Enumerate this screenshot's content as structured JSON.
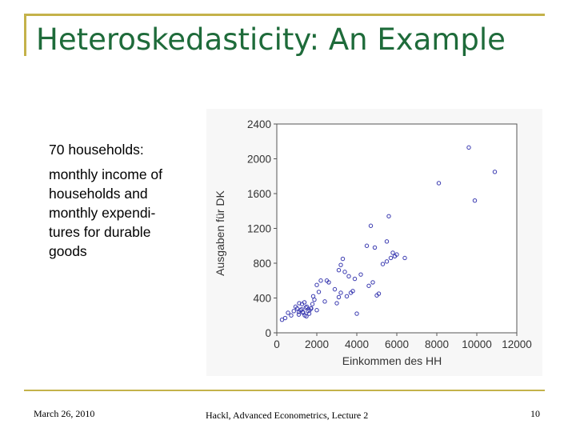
{
  "slide": {
    "title": "Heteroskedasticity: An Example",
    "text_line1": "70 households:",
    "text_para": "monthly income of households and monthly expendi- tures for durable goods"
  },
  "footer": {
    "date": "March 26, 2010",
    "center": "Hackl, Advanced Econometrics, Lecture 2",
    "page": "10"
  },
  "colors": {
    "title": "#1e6b3a",
    "rule": "#c4b24a",
    "points": "#3a3ab0"
  },
  "chart_data": {
    "type": "scatter",
    "title": "",
    "xlabel": "Einkommen des HH",
    "ylabel": "Ausgaben für DK",
    "xlim": [
      0,
      12000
    ],
    "ylim": [
      0,
      2400
    ],
    "xticks": [
      "0",
      "2000",
      "4000",
      "6000",
      "8000",
      "10000",
      "12000"
    ],
    "yticks": [
      "0",
      "400",
      "800",
      "1200",
      "1600",
      "2000",
      "2400"
    ],
    "x": [
      260,
      420,
      560,
      720,
      850,
      940,
      1020,
      1100,
      1180,
      1240,
      1320,
      1400,
      1480,
      1560,
      1640,
      1720,
      1120,
      1260,
      1380,
      1500,
      1620,
      1100,
      1300,
      1450,
      1700,
      1780,
      1820,
      1880,
      2000,
      2100,
      2200,
      2500,
      2600,
      2900,
      3100,
      3200,
      3300,
      3400,
      3600,
      3800,
      3900,
      4000,
      3500,
      3700,
      2000,
      2400,
      3000,
      3100,
      3200,
      4200,
      4500,
      4700,
      4900,
      4800,
      5000,
      5100,
      5300,
      5500,
      5600,
      5700,
      5800,
      5900,
      6000,
      6400,
      8100,
      9600,
      9900,
      10900,
      5500,
      4600
    ],
    "y": [
      150,
      170,
      230,
      200,
      250,
      300,
      280,
      240,
      260,
      270,
      230,
      200,
      190,
      250,
      260,
      280,
      340,
      330,
      350,
      300,
      220,
      210,
      240,
      290,
      280,
      330,
      420,
      380,
      550,
      470,
      600,
      600,
      580,
      500,
      720,
      780,
      850,
      700,
      650,
      480,
      620,
      220,
      420,
      460,
      260,
      360,
      340,
      410,
      460,
      670,
      1000,
      1230,
      980,
      580,
      430,
      450,
      790,
      1050,
      1340,
      860,
      920,
      880,
      900,
      860,
      1720,
      2130,
      1520,
      1850,
      820,
      540
    ]
  }
}
